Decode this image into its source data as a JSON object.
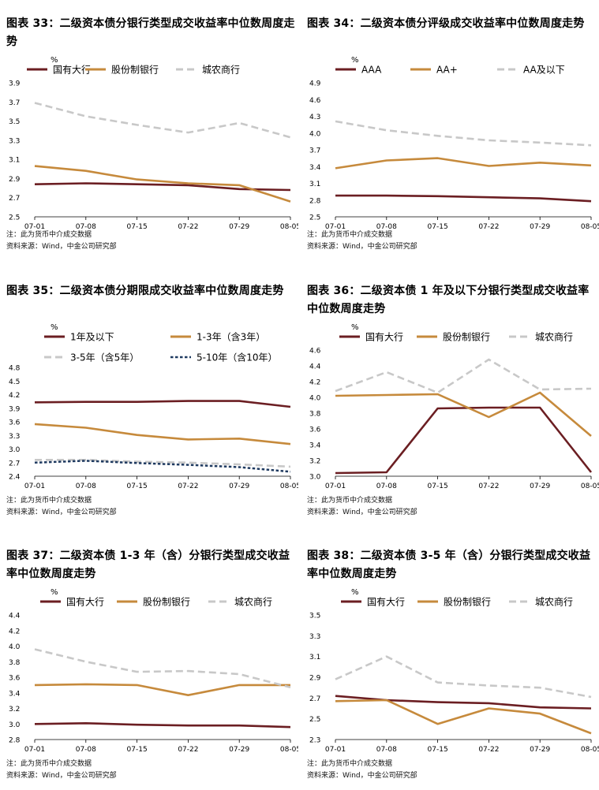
{
  "figures": [
    {
      "title": "图表 33：二级资本债分银行类型成交收益率中位数周度走势",
      "note": "注：此为货币中介成交数据",
      "source": "资料来源：Wind，中金公司研究部"
    },
    {
      "title": "图表 34：二级资本债分评级成交收益率中位数周度走势",
      "note": "注：此为货币中介成交数据",
      "source": "资料来源：Wind，中金公司研究部"
    },
    {
      "title": "图表 35：二级资本债分期限成交收益率中位数周度走势",
      "note": "注：此为货币中介成交数据",
      "source": "资料来源：Wind，中金公司研究部"
    },
    {
      "title": "图表 36：二级资本债 1 年及以下分银行类型成交收益率中位数周度走势",
      "note": "注：此为货币中介成交数据",
      "source": "资料来源：Wind，中金公司研究部"
    },
    {
      "title": "图表 37：二级资本债 1-3 年（含）分银行类型成交收益率中位数周度走势",
      "note": "注：此为货币中介成交数据",
      "source": "资料来源：Wind，中金公司研究部"
    },
    {
      "title": "图表 38：二级资本债 3-5 年（含）分银行类型成交收益率中位数周度走势",
      "note": "注：此为货币中介成交数据",
      "source": "资料来源：Wind，中金公司研究部"
    }
  ],
  "chart_data": [
    {
      "type": "line",
      "title": "图表 33：二级资本债分银行类型成交收益率中位数周度走势",
      "ylabel": "%",
      "categories": [
        "07-01",
        "07-08",
        "07-15",
        "07-22",
        "07-29",
        "08-05"
      ],
      "ylim": [
        2.5,
        3.9
      ],
      "yticks": [
        "2.5",
        "2.7",
        "2.9",
        "3.1",
        "3.3",
        "3.5",
        "3.7",
        "3.9"
      ],
      "legend_rows": [
        [
          0,
          1,
          2
        ]
      ],
      "series": [
        {
          "name": "国有大行",
          "color": "#6B1E22",
          "dash": "solid",
          "values": [
            2.84,
            2.85,
            2.84,
            2.83,
            2.79,
            2.78
          ]
        },
        {
          "name": "股份制银行",
          "color": "#C68A3C",
          "dash": "solid",
          "values": [
            3.03,
            2.98,
            2.89,
            2.85,
            2.83,
            2.66
          ]
        },
        {
          "name": "城农商行",
          "color": "#C8C8C8",
          "dash": "long",
          "values": [
            3.69,
            3.55,
            3.46,
            3.38,
            3.48,
            3.33
          ]
        }
      ]
    },
    {
      "type": "line",
      "title": "图表 34：二级资本债分评级成交收益率中位数周度走势",
      "ylabel": "%",
      "categories": [
        "07-01",
        "07-08",
        "07-15",
        "07-22",
        "07-29",
        "08-05"
      ],
      "ylim": [
        2.5,
        4.9
      ],
      "yticks": [
        "2.5",
        "2.8",
        "3.1",
        "3.4",
        "3.7",
        "4.0",
        "4.3",
        "4.6",
        "4.9"
      ],
      "legend_rows": [
        [
          0,
          1,
          2
        ]
      ],
      "series": [
        {
          "name": "AAA",
          "color": "#6B1E22",
          "dash": "solid",
          "values": [
            2.88,
            2.88,
            2.87,
            2.85,
            2.83,
            2.78
          ]
        },
        {
          "name": "AA+",
          "color": "#C68A3C",
          "dash": "solid",
          "values": [
            3.37,
            3.51,
            3.55,
            3.41,
            3.47,
            3.42
          ]
        },
        {
          "name": "AA及以下",
          "color": "#C8C8C8",
          "dash": "long",
          "values": [
            4.21,
            4.05,
            3.95,
            3.87,
            3.83,
            3.78
          ]
        }
      ]
    },
    {
      "type": "line",
      "title": "图表 35：二级资本债分期限成交收益率中位数周度走势",
      "ylabel": "%",
      "categories": [
        "07-01",
        "07-08",
        "07-15",
        "07-22",
        "07-29",
        "08-05"
      ],
      "ylim": [
        2.4,
        4.8
      ],
      "yticks": [
        "2.4",
        "2.7",
        "3.0",
        "3.3",
        "3.6",
        "3.9",
        "4.2",
        "4.5",
        "4.8"
      ],
      "legend_rows": [
        [
          0,
          1
        ],
        [
          2,
          3
        ]
      ],
      "series": [
        {
          "name": "1年及以下",
          "color": "#6B1E22",
          "dash": "solid",
          "values": [
            4.03,
            4.04,
            4.04,
            4.06,
            4.06,
            3.93
          ]
        },
        {
          "name": "1-3年（含3年）",
          "color": "#C68A3C",
          "dash": "solid",
          "values": [
            3.55,
            3.47,
            3.31,
            3.21,
            3.23,
            3.11
          ]
        },
        {
          "name": "3-5年（含5年）",
          "color": "#C8C8C8",
          "dash": "long",
          "values": [
            2.76,
            2.76,
            2.72,
            2.7,
            2.66,
            2.61
          ]
        },
        {
          "name": "5-10年（含10年）",
          "color": "#1F3A60",
          "dash": "short",
          "values": [
            2.7,
            2.74,
            2.69,
            2.65,
            2.6,
            2.5
          ]
        }
      ]
    },
    {
      "type": "line",
      "title": "图表 36：二级资本债 1 年及以下分银行类型成交收益率中位数周度走势",
      "ylabel": "%",
      "categories": [
        "07-01",
        "07-08",
        "07-15",
        "07-22",
        "07-29",
        "08-05"
      ],
      "ylim": [
        3.0,
        4.6
      ],
      "yticks": [
        "3.0",
        "3.2",
        "3.4",
        "3.6",
        "3.8",
        "4.0",
        "4.2",
        "4.4",
        "4.6"
      ],
      "legend_rows": [
        [
          0,
          1,
          2
        ]
      ],
      "series": [
        {
          "name": "国有大行",
          "color": "#6B1E22",
          "dash": "solid",
          "values": [
            3.04,
            3.05,
            3.86,
            3.87,
            3.87,
            3.05
          ]
        },
        {
          "name": "股份制银行",
          "color": "#C68A3C",
          "dash": "solid",
          "values": [
            4.02,
            4.03,
            4.04,
            3.75,
            4.06,
            3.51
          ]
        },
        {
          "name": "城农商行",
          "color": "#C8C8C8",
          "dash": "long",
          "values": [
            4.08,
            4.32,
            4.06,
            4.48,
            4.1,
            4.11
          ]
        }
      ]
    },
    {
      "type": "line",
      "title": "图表 37：二级资本债 1-3 年（含）分银行类型成交收益率中位数周度走势",
      "ylabel": "%",
      "categories": [
        "07-01",
        "07-08",
        "07-15",
        "07-22",
        "07-29",
        "08-05"
      ],
      "ylim": [
        2.8,
        4.4
      ],
      "yticks": [
        "2.8",
        "3.0",
        "3.2",
        "3.4",
        "3.6",
        "3.8",
        "4.0",
        "4.2",
        "4.4"
      ],
      "legend_rows": [
        [
          0,
          1,
          2
        ]
      ],
      "series": [
        {
          "name": "国有大行",
          "color": "#6B1E22",
          "dash": "solid",
          "values": [
            3.0,
            3.01,
            2.99,
            2.98,
            2.98,
            2.96
          ]
        },
        {
          "name": "股份制银行",
          "color": "#C68A3C",
          "dash": "solid",
          "values": [
            3.5,
            3.51,
            3.5,
            3.37,
            3.5,
            3.5
          ]
        },
        {
          "name": "城农商行",
          "color": "#C8C8C8",
          "dash": "long",
          "values": [
            3.96,
            3.8,
            3.67,
            3.68,
            3.64,
            3.47
          ]
        }
      ]
    },
    {
      "type": "line",
      "title": "图表 38：二级资本债 3-5 年（含）分银行类型成交收益率中位数周度走势",
      "ylabel": "%",
      "categories": [
        "07-01",
        "07-08",
        "07-15",
        "07-22",
        "07-29",
        "08-05"
      ],
      "ylim": [
        2.3,
        3.5
      ],
      "yticks": [
        "2.3",
        "2.5",
        "2.7",
        "2.9",
        "3.1",
        "3.3",
        "3.5"
      ],
      "legend_rows": [
        [
          0,
          1,
          2
        ]
      ],
      "series": [
        {
          "name": "国有大行",
          "color": "#6B1E22",
          "dash": "solid",
          "values": [
            2.72,
            2.68,
            2.66,
            2.65,
            2.61,
            2.6
          ]
        },
        {
          "name": "股份制银行",
          "color": "#C68A3C",
          "dash": "solid",
          "values": [
            2.67,
            2.68,
            2.45,
            2.6,
            2.55,
            2.36
          ]
        },
        {
          "name": "城农商行",
          "color": "#C8C8C8",
          "dash": "long",
          "values": [
            2.88,
            3.1,
            2.85,
            2.82,
            2.8,
            2.71
          ]
        }
      ]
    }
  ]
}
